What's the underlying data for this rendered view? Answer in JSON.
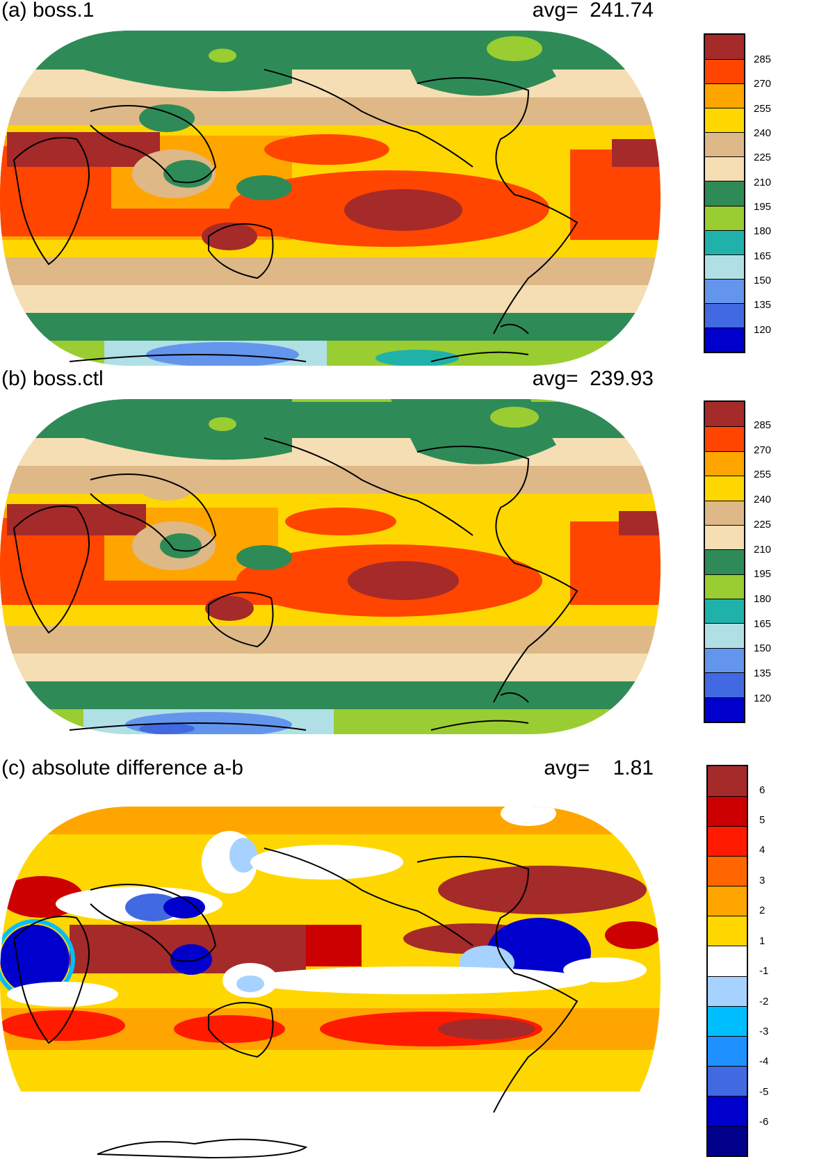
{
  "panels": [
    {
      "id": "a",
      "title": "(a) boss.1",
      "avg_label": "avg=",
      "avg_value": "241.74",
      "colorbar": {
        "colors": [
          "#a52a2a",
          "#ff4500",
          "#ffa500",
          "#ffd700",
          "#deb887",
          "#f5deb3",
          "#2e8b57",
          "#9acd32",
          "#20b2aa",
          "#b0e0e6",
          "#6495ed",
          "#4169e1",
          "#0000cd"
        ],
        "labels": [
          "285",
          "270",
          "255",
          "240",
          "225",
          "210",
          "195",
          "180",
          "165",
          "150",
          "135",
          "120"
        ]
      }
    },
    {
      "id": "b",
      "title": "(b) boss.ctl",
      "avg_label": "avg=",
      "avg_value": "239.93",
      "colorbar": {
        "colors": [
          "#a52a2a",
          "#ff4500",
          "#ffa500",
          "#ffd700",
          "#deb887",
          "#f5deb3",
          "#2e8b57",
          "#9acd32",
          "#20b2aa",
          "#b0e0e6",
          "#6495ed",
          "#4169e1",
          "#0000cd"
        ],
        "labels": [
          "285",
          "270",
          "255",
          "240",
          "225",
          "210",
          "195",
          "180",
          "165",
          "150",
          "135",
          "120"
        ]
      }
    },
    {
      "id": "c",
      "title": "(c) absolute difference a-b",
      "avg_label": "avg=",
      "avg_value": "1.81",
      "colorbar": {
        "colors": [
          "#a52a2a",
          "#cc0000",
          "#ff1a00",
          "#ff6600",
          "#ffa500",
          "#ffd700",
          "#ffffff",
          "#a6d2ff",
          "#00bfff",
          "#1e90ff",
          "#4169e1",
          "#0000cd",
          "#00008b"
        ],
        "labels": [
          "6",
          "5",
          "4",
          "3",
          "2",
          "1",
          "-1",
          "-2",
          "-3",
          "-4",
          "-5",
          "-6"
        ]
      }
    }
  ]
}
